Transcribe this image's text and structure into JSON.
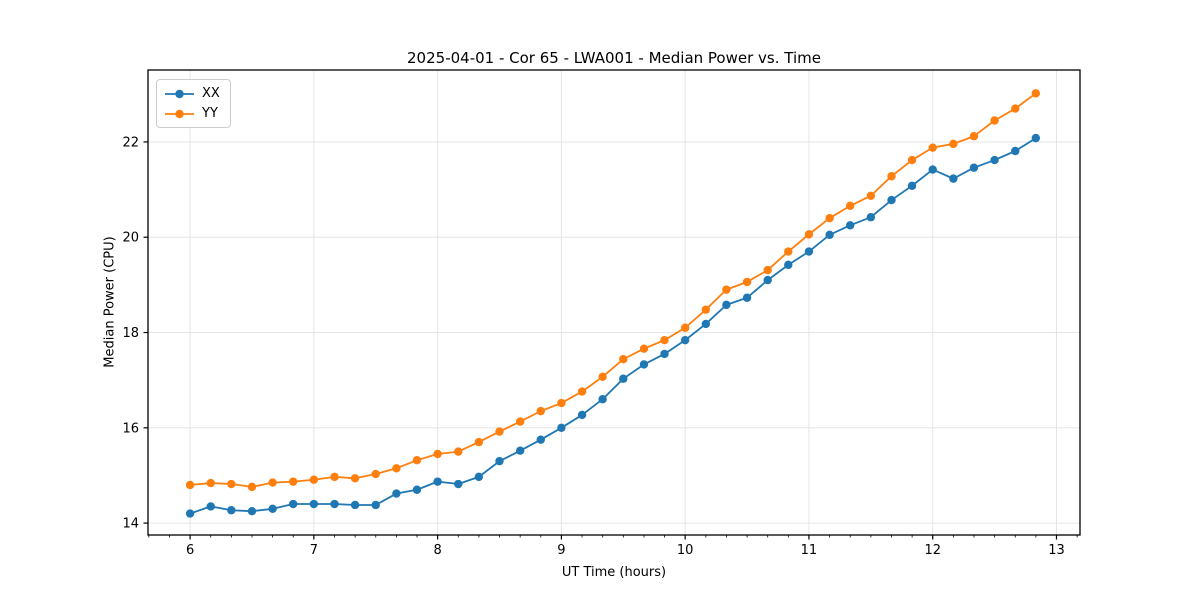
{
  "figure": {
    "title": "2025-04-01 - Cor 65 - LWA001 - Median Power vs. Time"
  },
  "chart_data": {
    "type": "line",
    "title": "2025-04-01 - Cor 65 - LWA001 - Median Power vs. Time",
    "xlabel": "UT Time (hours)",
    "ylabel": "Median Power (CPU)",
    "xlim": [
      5.66,
      13.19
    ],
    "ylim": [
      13.75,
      23.51
    ],
    "x_major_ticks": [
      6,
      7,
      8,
      9,
      10,
      11,
      12,
      13
    ],
    "x_tick_labels": [
      "6",
      "7",
      "8",
      "9",
      "10",
      "11",
      "12",
      "13"
    ],
    "x_minor_step": 0.16667,
    "y_major_ticks": [
      14,
      16,
      18,
      20,
      22
    ],
    "y_tick_labels": [
      "14",
      "16",
      "18",
      "20",
      "22"
    ],
    "grid": true,
    "grid_color": "#e6e6e6",
    "spine_color": "#000000",
    "legend_position": "upper-left",
    "x": [
      6.0,
      6.167,
      6.333,
      6.5,
      6.667,
      6.833,
      7.0,
      7.167,
      7.333,
      7.5,
      7.667,
      7.833,
      8.0,
      8.167,
      8.333,
      8.5,
      8.667,
      8.833,
      9.0,
      9.167,
      9.333,
      9.5,
      9.667,
      9.833,
      10.0,
      10.167,
      10.333,
      10.5,
      10.667,
      10.833,
      11.0,
      11.167,
      11.333,
      11.5,
      11.667,
      11.833,
      12.0,
      12.167,
      12.333,
      12.5,
      12.667,
      12.833
    ],
    "series": [
      {
        "name": "XX",
        "color": "#1f77b4",
        "marker": "circle",
        "values": [
          14.2,
          14.35,
          14.27,
          14.25,
          14.3,
          14.4,
          14.4,
          14.4,
          14.38,
          14.38,
          14.62,
          14.7,
          14.87,
          14.82,
          14.97,
          15.3,
          15.52,
          15.75,
          16.0,
          16.27,
          16.6,
          17.03,
          17.33,
          17.55,
          17.84,
          18.18,
          18.58,
          18.73,
          19.1,
          19.42,
          19.7,
          20.05,
          20.25,
          20.42,
          20.78,
          21.08,
          21.42,
          21.23,
          21.46,
          21.62,
          21.81,
          22.08
        ]
      },
      {
        "name": "YY",
        "color": "#ff7f0e",
        "marker": "circle",
        "values": [
          14.8,
          14.84,
          14.82,
          14.76,
          14.85,
          14.87,
          14.91,
          14.97,
          14.94,
          15.03,
          15.15,
          15.32,
          15.45,
          15.5,
          15.7,
          15.92,
          16.13,
          16.35,
          16.52,
          16.76,
          17.07,
          17.44,
          17.66,
          17.84,
          18.1,
          18.48,
          18.9,
          19.06,
          19.31,
          19.7,
          20.06,
          20.4,
          20.66,
          20.87,
          21.28,
          21.62,
          21.88,
          21.96,
          22.12,
          22.45,
          22.7,
          23.02
        ]
      }
    ]
  }
}
